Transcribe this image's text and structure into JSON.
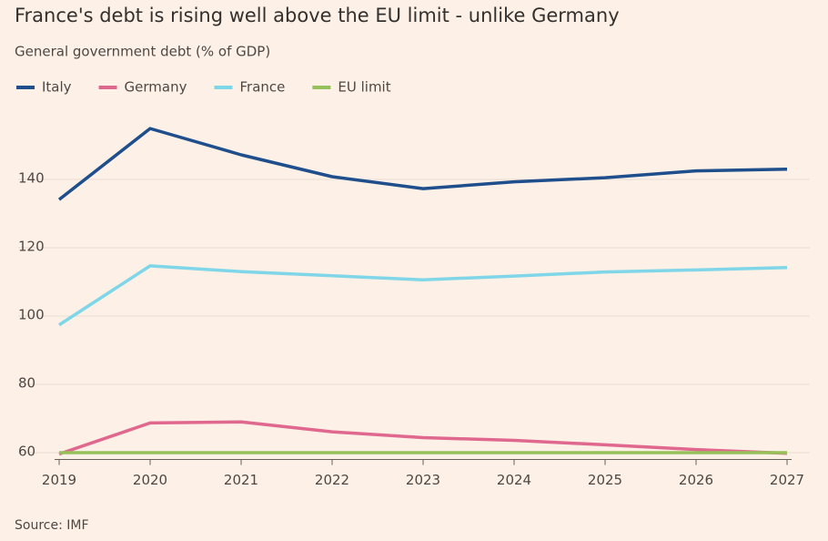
{
  "chart_data": {
    "type": "line",
    "title": "France's debt is rising well above the EU limit - unlike Germany",
    "subtitle": "General government debt (% of GDP)",
    "source": "Source: IMF",
    "x": [
      2019,
      2020,
      2021,
      2022,
      2023,
      2024,
      2025,
      2026,
      2027
    ],
    "xlim": [
      2019,
      2027
    ],
    "xticks": [
      2019,
      2020,
      2021,
      2022,
      2023,
      2024,
      2025,
      2026,
      2027
    ],
    "ylim": [
      58,
      160
    ],
    "yticks": [
      60,
      80,
      100,
      120,
      140
    ],
    "grid": true,
    "legend": "top-left",
    "series": [
      {
        "name": "Italy",
        "color": "#1e4e8c",
        "values": [
          134.1,
          154.9,
          147.2,
          140.8,
          137.3,
          139.3,
          140.5,
          142.5,
          143.0
        ]
      },
      {
        "name": "Germany",
        "color": "#e0688e",
        "values": [
          59.6,
          68.7,
          69.0,
          66.1,
          64.4,
          63.6,
          62.3,
          60.9,
          59.8
        ]
      },
      {
        "name": "France",
        "color": "#7fd6e8",
        "values": [
          97.4,
          114.7,
          113.0,
          111.8,
          110.6,
          111.7,
          112.9,
          113.5,
          114.2
        ]
      },
      {
        "name": "EU limit",
        "color": "#96c05a",
        "values": [
          60,
          60,
          60,
          60,
          60,
          60,
          60,
          60,
          60
        ]
      }
    ]
  }
}
